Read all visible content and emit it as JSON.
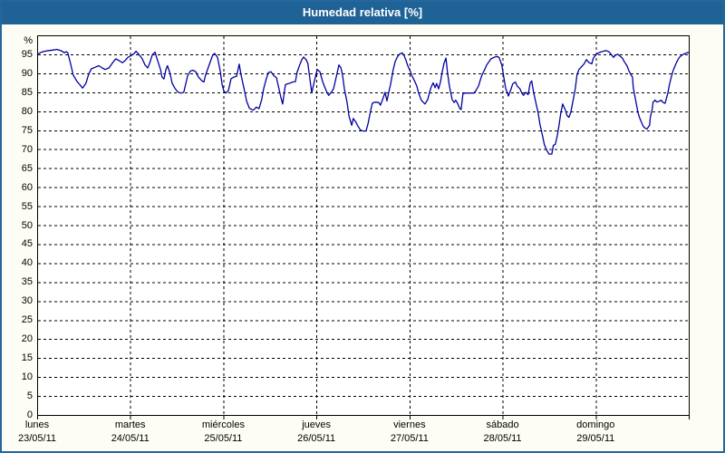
{
  "window": {
    "title": "Humedad relativa [%]"
  },
  "colors": {
    "titlebar": "#1f6396",
    "frame": "#24679c",
    "background": "#fdfdf6",
    "plot_background": "#ffffff",
    "grid": "#000000",
    "line": "#0000a0"
  },
  "chart_data": {
    "type": "line",
    "title": "Humedad relativa [%]",
    "y_unit": "%",
    "ylim": [
      0,
      100
    ],
    "y_ticks": [
      0,
      5,
      10,
      15,
      20,
      25,
      30,
      35,
      40,
      45,
      50,
      55,
      60,
      65,
      70,
      75,
      80,
      85,
      90,
      95
    ],
    "grid": "dashed",
    "legend": "none",
    "x_total_hours": 168,
    "x_days": [
      {
        "name": "lunes",
        "date": "23/05/11"
      },
      {
        "name": "martes",
        "date": "24/05/11"
      },
      {
        "name": "miércoles",
        "date": "25/05/11"
      },
      {
        "name": "jueves",
        "date": "26/05/11"
      },
      {
        "name": "viernes",
        "date": "27/05/11"
      },
      {
        "name": "sábado",
        "date": "28/05/11"
      },
      {
        "name": "domingo",
        "date": "29/05/11"
      }
    ],
    "series": [
      {
        "name": "Humedad relativa",
        "color": "#0000a0",
        "points": [
          [
            0,
            95.0
          ],
          [
            0.9,
            95.5
          ],
          [
            1.9,
            95.8
          ],
          [
            3.0,
            96.0
          ],
          [
            4.0,
            96.1
          ],
          [
            5.1,
            96.3
          ],
          [
            6.3,
            95.9
          ],
          [
            7.0,
            95.4
          ],
          [
            7.5,
            95.7
          ],
          [
            7.9,
            95.4
          ],
          [
            8.6,
            92.6
          ],
          [
            9.3,
            89.5
          ],
          [
            10.3,
            87.8
          ],
          [
            11.0,
            87.0
          ],
          [
            11.7,
            86.1
          ],
          [
            12.6,
            87.4
          ],
          [
            13.3,
            89.8
          ],
          [
            14.0,
            91.2
          ],
          [
            15.0,
            91.6
          ],
          [
            15.9,
            92.0
          ],
          [
            16.8,
            91.4
          ],
          [
            17.5,
            91.0
          ],
          [
            18.5,
            91.4
          ],
          [
            19.2,
            92.4
          ],
          [
            19.9,
            93.4
          ],
          [
            20.3,
            93.8
          ],
          [
            21.0,
            93.4
          ],
          [
            22.0,
            92.8
          ],
          [
            22.7,
            93.4
          ],
          [
            23.4,
            94.2
          ],
          [
            24.3,
            94.7
          ],
          [
            25.0,
            95.2
          ],
          [
            25.5,
            95.8
          ],
          [
            26.2,
            95.0
          ],
          [
            27.1,
            93.8
          ],
          [
            27.8,
            92.2
          ],
          [
            28.5,
            91.4
          ],
          [
            29.0,
            92.6
          ],
          [
            29.7,
            94.9
          ],
          [
            30.4,
            95.6
          ],
          [
            30.8,
            94.2
          ],
          [
            31.8,
            91.0
          ],
          [
            32.2,
            89.0
          ],
          [
            32.7,
            88.5
          ],
          [
            33.2,
            91.0
          ],
          [
            33.6,
            92.0
          ],
          [
            34.3,
            89.8
          ],
          [
            34.8,
            87.4
          ],
          [
            35.5,
            86.1
          ],
          [
            36.0,
            85.4
          ],
          [
            36.4,
            85.0
          ],
          [
            37.1,
            84.8
          ],
          [
            37.8,
            85.0
          ],
          [
            38.8,
            89.4
          ],
          [
            39.5,
            90.6
          ],
          [
            40.2,
            90.8
          ],
          [
            40.9,
            90.4
          ],
          [
            41.6,
            89.0
          ],
          [
            42.5,
            88.0
          ],
          [
            43.0,
            87.7
          ],
          [
            43.4,
            89.4
          ],
          [
            44.2,
            91.8
          ],
          [
            44.9,
            93.8
          ],
          [
            45.3,
            94.9
          ],
          [
            45.8,
            95.2
          ],
          [
            46.5,
            94.2
          ],
          [
            47.2,
            90.6
          ],
          [
            47.7,
            87.0
          ],
          [
            48.1,
            85.4
          ],
          [
            48.6,
            84.8
          ],
          [
            49.3,
            85.4
          ],
          [
            50.0,
            88.6
          ],
          [
            50.7,
            89.0
          ],
          [
            51.4,
            89.2
          ],
          [
            52.1,
            92.4
          ],
          [
            52.6,
            89.4
          ],
          [
            53.3,
            86.2
          ],
          [
            54.0,
            82.7
          ],
          [
            54.7,
            80.8
          ],
          [
            55.4,
            80.4
          ],
          [
            55.8,
            80.3
          ],
          [
            56.5,
            81.1
          ],
          [
            57.2,
            80.7
          ],
          [
            57.9,
            83.1
          ],
          [
            58.4,
            85.9
          ],
          [
            59.1,
            88.6
          ],
          [
            59.6,
            90.2
          ],
          [
            60.3,
            90.4
          ],
          [
            61.0,
            89.4
          ],
          [
            61.7,
            88.8
          ],
          [
            62.1,
            87.0
          ],
          [
            62.8,
            83.8
          ],
          [
            63.3,
            81.9
          ],
          [
            64.0,
            87.0
          ],
          [
            64.5,
            87.2
          ],
          [
            65.2,
            87.4
          ],
          [
            65.9,
            87.7
          ],
          [
            66.6,
            87.8
          ],
          [
            67.0,
            90.2
          ],
          [
            67.7,
            92.2
          ],
          [
            68.2,
            93.5
          ],
          [
            68.7,
            94.3
          ],
          [
            69.4,
            93.5
          ],
          [
            69.8,
            92.6
          ],
          [
            70.3,
            88.6
          ],
          [
            70.8,
            84.9
          ],
          [
            71.5,
            88.0
          ],
          [
            72.2,
            91.0
          ],
          [
            72.9,
            90.4
          ],
          [
            73.6,
            87.8
          ],
          [
            74.3,
            86.0
          ],
          [
            74.8,
            84.8
          ],
          [
            75.2,
            84.2
          ],
          [
            75.9,
            85.1
          ],
          [
            76.4,
            85.9
          ],
          [
            77.1,
            89.0
          ],
          [
            77.8,
            92.2
          ],
          [
            78.3,
            91.5
          ],
          [
            78.7,
            89.8
          ],
          [
            79.2,
            85.9
          ],
          [
            79.9,
            82.3
          ],
          [
            80.4,
            78.7
          ],
          [
            81.1,
            76.3
          ],
          [
            81.5,
            78.1
          ],
          [
            82.2,
            77.1
          ],
          [
            82.7,
            76.1
          ],
          [
            83.4,
            75.0
          ],
          [
            84.1,
            74.8
          ],
          [
            84.8,
            74.8
          ],
          [
            85.3,
            76.7
          ],
          [
            86.0,
            80.3
          ],
          [
            86.4,
            82.1
          ],
          [
            87.1,
            82.4
          ],
          [
            88.1,
            82.3
          ],
          [
            88.5,
            81.6
          ],
          [
            89.2,
            83.5
          ],
          [
            89.7,
            85.0
          ],
          [
            90.2,
            82.7
          ],
          [
            90.6,
            84.7
          ],
          [
            91.1,
            87.0
          ],
          [
            91.8,
            91.0
          ],
          [
            92.3,
            93.0
          ],
          [
            92.8,
            94.2
          ],
          [
            93.4,
            95.0
          ],
          [
            94.1,
            95.4
          ],
          [
            94.6,
            94.7
          ],
          [
            95.1,
            93.4
          ],
          [
            95.6,
            91.9
          ],
          [
            96.0,
            91.0
          ],
          [
            96.7,
            89.2
          ],
          [
            97.4,
            87.8
          ],
          [
            97.9,
            86.6
          ],
          [
            98.3,
            85.0
          ],
          [
            99.0,
            83.0
          ],
          [
            99.5,
            82.4
          ],
          [
            100.0,
            81.9
          ],
          [
            100.7,
            83.1
          ],
          [
            101.1,
            84.7
          ],
          [
            101.6,
            86.4
          ],
          [
            102.1,
            87.5
          ],
          [
            102.6,
            86.2
          ],
          [
            103.0,
            87.3
          ],
          [
            103.5,
            85.9
          ],
          [
            104.0,
            87.8
          ],
          [
            104.4,
            90.2
          ],
          [
            104.9,
            92.6
          ],
          [
            105.4,
            94.0
          ],
          [
            105.8,
            90.2
          ],
          [
            106.3,
            86.6
          ],
          [
            107.0,
            83.1
          ],
          [
            107.5,
            82.3
          ],
          [
            107.9,
            82.9
          ],
          [
            108.4,
            82.1
          ],
          [
            108.9,
            80.8
          ],
          [
            109.3,
            80.4
          ],
          [
            109.8,
            84.7
          ],
          [
            110.7,
            84.8
          ],
          [
            111.7,
            84.8
          ],
          [
            112.6,
            84.8
          ],
          [
            113.1,
            85.4
          ],
          [
            113.8,
            86.6
          ],
          [
            114.2,
            88.0
          ],
          [
            114.7,
            89.6
          ],
          [
            115.4,
            91.0
          ],
          [
            115.9,
            92.2
          ],
          [
            116.6,
            93.2
          ],
          [
            117.0,
            93.8
          ],
          [
            118.0,
            94.3
          ],
          [
            118.7,
            94.4
          ],
          [
            119.1,
            94.2
          ],
          [
            119.8,
            92.2
          ],
          [
            120.3,
            89.0
          ],
          [
            120.8,
            86.0
          ],
          [
            121.2,
            85.0
          ],
          [
            121.5,
            84.0
          ],
          [
            122.2,
            85.9
          ],
          [
            122.6,
            87.2
          ],
          [
            123.3,
            87.7
          ],
          [
            123.8,
            86.6
          ],
          [
            124.5,
            85.9
          ],
          [
            125.0,
            84.7
          ],
          [
            125.4,
            84.2
          ],
          [
            125.9,
            85.0
          ],
          [
            126.6,
            84.4
          ],
          [
            127.1,
            87.4
          ],
          [
            127.5,
            88.0
          ],
          [
            128.0,
            85.0
          ],
          [
            128.5,
            82.7
          ],
          [
            129.2,
            79.5
          ],
          [
            129.6,
            76.7
          ],
          [
            130.3,
            73.5
          ],
          [
            130.8,
            71.1
          ],
          [
            131.5,
            69.5
          ],
          [
            132.0,
            68.7
          ],
          [
            132.7,
            68.7
          ],
          [
            133.1,
            71.0
          ],
          [
            133.6,
            71.3
          ],
          [
            134.1,
            73.5
          ],
          [
            134.5,
            75.9
          ],
          [
            135.0,
            79.5
          ],
          [
            135.5,
            81.9
          ],
          [
            136.2,
            80.3
          ],
          [
            136.6,
            78.9
          ],
          [
            137.1,
            78.4
          ],
          [
            137.6,
            79.8
          ],
          [
            138.3,
            83.5
          ],
          [
            138.7,
            85.6
          ],
          [
            139.2,
            89.6
          ],
          [
            139.7,
            91.0
          ],
          [
            140.4,
            91.8
          ],
          [
            141.1,
            92.6
          ],
          [
            141.6,
            93.6
          ],
          [
            142.3,
            92.8
          ],
          [
            143.0,
            92.5
          ],
          [
            143.4,
            94.0
          ],
          [
            144.1,
            94.9
          ],
          [
            144.6,
            95.3
          ],
          [
            145.3,
            95.6
          ],
          [
            146.0,
            95.8
          ],
          [
            146.5,
            96.0
          ],
          [
            147.4,
            95.7
          ],
          [
            148.1,
            94.9
          ],
          [
            148.6,
            94.2
          ],
          [
            149.0,
            94.7
          ],
          [
            149.7,
            95.0
          ],
          [
            150.2,
            94.6
          ],
          [
            150.9,
            94.0
          ],
          [
            151.4,
            93.0
          ],
          [
            152.1,
            91.9
          ],
          [
            152.5,
            90.8
          ],
          [
            153.0,
            89.8
          ],
          [
            153.5,
            89.0
          ],
          [
            153.7,
            86.2
          ],
          [
            154.2,
            83.5
          ],
          [
            154.6,
            81.3
          ],
          [
            154.9,
            79.7
          ],
          [
            155.3,
            78.4
          ],
          [
            155.8,
            77.1
          ],
          [
            156.3,
            76.0
          ],
          [
            156.7,
            75.6
          ],
          [
            157.2,
            75.3
          ],
          [
            157.9,
            76.3
          ],
          [
            158.1,
            78.4
          ],
          [
            158.6,
            80.7
          ],
          [
            158.8,
            82.4
          ],
          [
            159.3,
            82.9
          ],
          [
            159.8,
            82.4
          ],
          [
            160.5,
            82.7
          ],
          [
            160.9,
            82.9
          ],
          [
            161.4,
            82.3
          ],
          [
            161.9,
            82.1
          ],
          [
            162.6,
            84.7
          ],
          [
            163.0,
            86.9
          ],
          [
            163.5,
            89.0
          ],
          [
            164.0,
            90.8
          ],
          [
            164.7,
            92.5
          ],
          [
            165.1,
            93.4
          ],
          [
            165.6,
            94.2
          ],
          [
            166.1,
            94.7
          ],
          [
            166.8,
            95.1
          ],
          [
            167.5,
            95.4
          ],
          [
            168.0,
            95.5
          ]
        ]
      }
    ]
  }
}
